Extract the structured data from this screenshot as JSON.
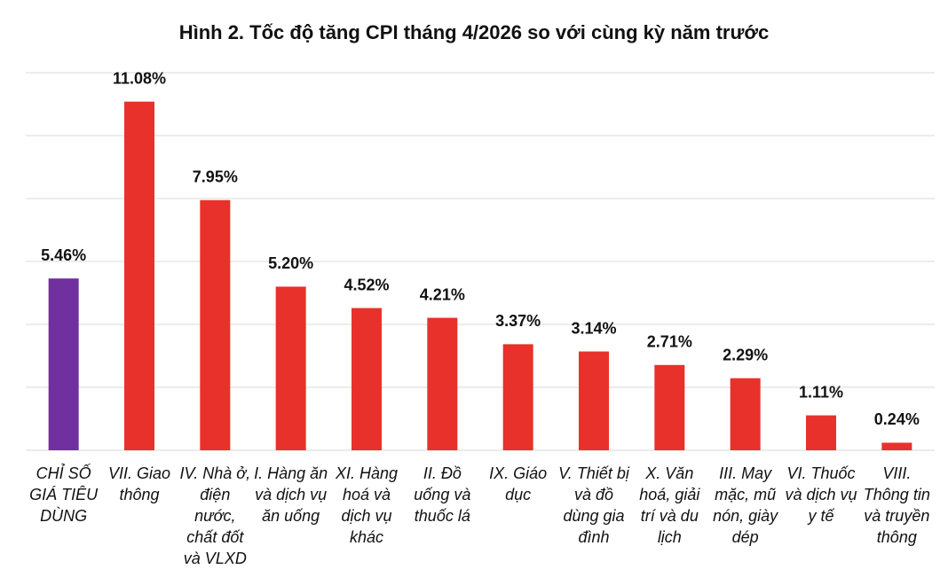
{
  "chart_data": {
    "type": "bar",
    "title": "Hình 2. Tốc độ tăng CPI tháng 4/2026 so với cùng kỳ năm trước",
    "categories": [
      "CHỈ SỐ GIÁ TIÊU DÙNG",
      "VII. Giao thông",
      "IV. Nhà ở, điện nước, chất đốt và VLXD",
      "I. Hàng ăn và dịch vụ ăn uống",
      "XI. Hàng hoá và dịch vụ khác",
      "II. Đồ uống và thuốc lá",
      "IX. Giáo dục",
      "V. Thiết bị và đồ dùng gia đình",
      "X. Văn hoá, giải trí và du lịch",
      "III. May mặc, mũ nón, giày dép",
      "VI. Thuốc và dịch vụ y tế",
      "VIII. Thông tin và truyền thông"
    ],
    "values": [
      5.46,
      11.08,
      7.95,
      5.2,
      4.52,
      4.21,
      3.37,
      3.14,
      2.71,
      2.29,
      1.11,
      0.24
    ],
    "value_labels": [
      "5.46%",
      "11.08%",
      "7.95%",
      "5.20%",
      "4.52%",
      "4.21%",
      "3.37%",
      "3.14%",
      "2.71%",
      "2.29%",
      "1.11%",
      "0.24%"
    ],
    "colors": [
      "#7030a0",
      "#e8312a",
      "#e8312a",
      "#e8312a",
      "#e8312a",
      "#e8312a",
      "#e8312a",
      "#e8312a",
      "#e8312a",
      "#e8312a",
      "#e8312a",
      "#e8312a"
    ],
    "ylim": [
      0,
      12
    ],
    "yticks": [
      0,
      2,
      4,
      6,
      8,
      10,
      12
    ],
    "grid": true
  }
}
